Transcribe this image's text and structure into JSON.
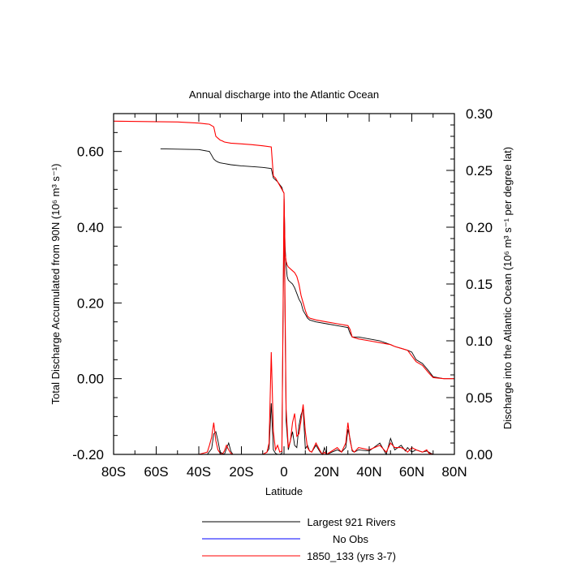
{
  "chart_data": {
    "type": "line",
    "title": "Annual discharge into the Atlantic Ocean",
    "xlabel": "Latitude",
    "ylabel_left": "Total Discharge Accumulated from 90N (10⁶ m³ s⁻¹)",
    "ylabel_right": "Discharge into the Atlantic Ocean (10⁶ m³ s⁻¹ per degree lat)",
    "xlim": [
      -80,
      80
    ],
    "ylim_left": [
      -0.2,
      0.7
    ],
    "ylim_right": [
      0.0,
      0.3
    ],
    "x_ticks": [
      -80,
      -60,
      -40,
      -20,
      0,
      20,
      40,
      60,
      80
    ],
    "x_tick_labels": [
      "80S",
      "60S",
      "40S",
      "20S",
      "0",
      "20N",
      "40N",
      "60N",
      "80N"
    ],
    "y_left_ticks": [
      -0.2,
      0.0,
      0.2,
      0.4,
      0.6
    ],
    "y_left_tick_labels": [
      "-0.20",
      "0.00",
      "0.20",
      "0.40",
      "0.60"
    ],
    "y_right_ticks": [
      0.0,
      0.05,
      0.1,
      0.15,
      0.2,
      0.25,
      0.3
    ],
    "y_right_tick_labels": [
      "0.00",
      "0.05",
      "0.10",
      "0.15",
      "0.20",
      "0.25",
      "0.30"
    ],
    "legend_position": "bottom",
    "legend": [
      {
        "label": "Largest 921 Rivers",
        "color": "#000000"
      },
      {
        "label": "No Obs",
        "color": "#0000ff"
      },
      {
        "label": "1850_133 (yrs 3-7)",
        "color": "#ff0000"
      }
    ],
    "series": [
      {
        "name": "Largest 921 Rivers",
        "axis": "left",
        "color": "#000000",
        "x": [
          -58,
          -40,
          -35,
          -34,
          -33,
          -32,
          -31,
          -30,
          -28,
          -25,
          -20,
          -15,
          -10,
          -6,
          -5,
          -4,
          -3,
          -2,
          -1,
          -0.5,
          0,
          0.5,
          1,
          1.5,
          2,
          3,
          4,
          5,
          6,
          7,
          8,
          9,
          10,
          11,
          12,
          15,
          20,
          25,
          30,
          31,
          32,
          35,
          40,
          45,
          50,
          52,
          55,
          58,
          60,
          62,
          65,
          68,
          70,
          75,
          80
        ],
        "y": [
          0.607,
          0.605,
          0.6,
          0.59,
          0.58,
          0.575,
          0.572,
          0.57,
          0.568,
          0.565,
          0.562,
          0.56,
          0.558,
          0.555,
          0.53,
          0.525,
          0.52,
          0.512,
          0.505,
          0.495,
          0.49,
          0.35,
          0.3,
          0.27,
          0.26,
          0.255,
          0.25,
          0.24,
          0.225,
          0.21,
          0.2,
          0.18,
          0.17,
          0.16,
          0.155,
          0.15,
          0.145,
          0.14,
          0.135,
          0.12,
          0.11,
          0.11,
          0.105,
          0.1,
          0.09,
          0.085,
          0.08,
          0.075,
          0.07,
          0.05,
          0.04,
          0.02,
          0.005,
          0.0,
          0.0
        ]
      },
      {
        "name": "1850_133 (yrs 3-7)",
        "axis": "left",
        "color": "#ff0000",
        "x": [
          -80,
          -50,
          -40,
          -35,
          -33,
          -32,
          -31,
          -30,
          -29,
          -28,
          -25,
          -20,
          -15,
          -10,
          -6,
          -5,
          -4,
          -3,
          -2,
          -1,
          0,
          0.5,
          1,
          1.5,
          2,
          3,
          4,
          5,
          6,
          7,
          8,
          9,
          10,
          11,
          12,
          15,
          20,
          25,
          30,
          31,
          32,
          35,
          40,
          45,
          50,
          52,
          55,
          58,
          60,
          62,
          65,
          68,
          70,
          75,
          80
        ],
        "y": [
          0.68,
          0.678,
          0.675,
          0.672,
          0.665,
          0.64,
          0.635,
          0.63,
          0.628,
          0.625,
          0.622,
          0.62,
          0.618,
          0.615,
          0.612,
          0.535,
          0.53,
          0.52,
          0.51,
          0.5,
          0.49,
          0.33,
          0.31,
          0.3,
          0.295,
          0.29,
          0.285,
          0.28,
          0.27,
          0.25,
          0.22,
          0.2,
          0.18,
          0.165,
          0.16,
          0.155,
          0.15,
          0.145,
          0.14,
          0.13,
          0.11,
          0.105,
          0.1,
          0.095,
          0.09,
          0.085,
          0.08,
          0.075,
          0.06,
          0.045,
          0.035,
          0.015,
          0.003,
          0.0,
          0.0
        ]
      },
      {
        "name": "Largest 921 Rivers",
        "axis": "right",
        "color": "#000000",
        "x": [
          -80,
          -36,
          -34,
          -33,
          -32,
          -31,
          -30,
          -28,
          -27,
          -26,
          -25,
          -24,
          -20,
          -10,
          -8,
          -7,
          -6,
          -5,
          -4,
          -3,
          -2,
          -1,
          0,
          1,
          2,
          3,
          4,
          5,
          6,
          7,
          8,
          9,
          10,
          11,
          12,
          13,
          15,
          17,
          18,
          19,
          20,
          25,
          27,
          29,
          30,
          31,
          32,
          33,
          35,
          40,
          45,
          48,
          50,
          52,
          55,
          57,
          58,
          60,
          62,
          65,
          67,
          70,
          80
        ],
        "y": [
          0.0,
          0.0,
          0.005,
          0.018,
          0.02,
          0.012,
          0.002,
          0.0,
          0.005,
          0.01,
          0.003,
          0.0,
          0.0,
          0.0,
          0.002,
          0.005,
          0.045,
          0.004,
          0.001,
          0.0,
          0.0,
          0.001,
          0.215,
          0.03,
          0.004,
          0.012,
          0.02,
          0.008,
          0.006,
          0.025,
          0.035,
          0.04,
          0.005,
          0.008,
          0.003,
          0.002,
          0.008,
          0.002,
          0.0,
          0.006,
          0.0,
          0.004,
          0.002,
          0.006,
          0.022,
          0.014,
          0.003,
          0.002,
          0.004,
          0.003,
          0.01,
          0.0,
          0.014,
          0.004,
          0.008,
          0.003,
          0.006,
          0.002,
          0.004,
          0.002,
          0.003,
          0.0,
          0.0
        ]
      },
      {
        "name": "1850_133 (yrs 3-7)",
        "axis": "right",
        "color": "#ff0000",
        "x": [
          -80,
          -40,
          -36,
          -35,
          -34,
          -33,
          -32,
          -31,
          -30,
          -29,
          -28,
          -27,
          -26,
          -25,
          -24,
          -20,
          -10,
          -8,
          -7,
          -6,
          -5,
          -4,
          -3,
          -2,
          -1,
          0,
          1,
          2,
          3,
          4,
          5,
          6,
          7,
          8,
          9,
          10,
          11,
          12,
          13,
          15,
          17,
          18,
          19,
          20,
          25,
          27,
          29,
          30,
          31,
          32,
          33,
          35,
          40,
          45,
          48,
          50,
          52,
          55,
          57,
          58,
          60,
          62,
          65,
          67,
          68,
          70,
          80
        ],
        "y": [
          0.0,
          0.0,
          0.002,
          0.008,
          0.015,
          0.028,
          0.012,
          0.004,
          0.001,
          0.0,
          0.003,
          0.008,
          0.004,
          0.001,
          0.0,
          0.0,
          0.0,
          0.002,
          0.01,
          0.09,
          0.02,
          0.004,
          0.008,
          0.002,
          0.003,
          0.225,
          0.04,
          0.006,
          0.012,
          0.028,
          0.036,
          0.016,
          0.018,
          0.03,
          0.044,
          0.02,
          0.006,
          0.003,
          0.002,
          0.01,
          0.003,
          0.0,
          0.002,
          0.0,
          0.006,
          0.002,
          0.01,
          0.028,
          0.012,
          0.004,
          0.002,
          0.006,
          0.004,
          0.008,
          0.002,
          0.01,
          0.006,
          0.006,
          0.004,
          0.002,
          0.006,
          0.004,
          0.002,
          0.004,
          0.001,
          0.0,
          0.0
        ]
      }
    ]
  }
}
